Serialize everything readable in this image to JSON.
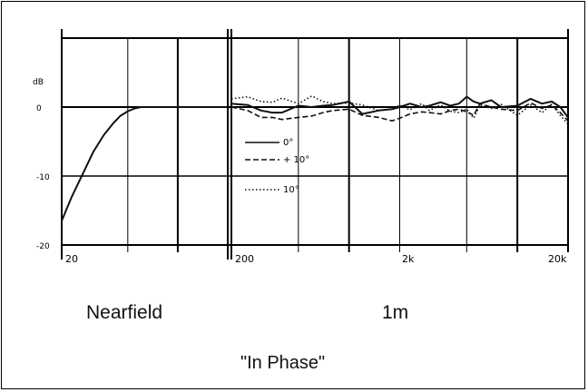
{
  "chart_data": {
    "type": "line",
    "ylabel": "dB",
    "ylim": [
      -20,
      8
    ],
    "y_ticks": [
      "0",
      "-10",
      "-20"
    ],
    "panels": [
      {
        "name": "Nearfield",
        "x_scale": "log",
        "xlim": [
          20,
          200
        ],
        "x_tick_labels": [
          "20"
        ],
        "series": [
          {
            "name": "",
            "style": "solid",
            "x": [
              20,
              23,
              27,
              31,
              36,
              41,
              45,
              50,
              55,
              60,
              70,
              80,
              100,
              130,
              200
            ],
            "y": [
              -16.5,
              -13,
              -9.5,
              -6.5,
              -4,
              -2.3,
              -1.3,
              -0.6,
              -0.2,
              0,
              0,
              0,
              0,
              0,
              0
            ]
          }
        ]
      },
      {
        "name": "1m",
        "x_scale": "log",
        "xlim": [
          200,
          20000
        ],
        "x_tick_labels": [
          "200",
          "2k",
          "20k"
        ],
        "series": [
          {
            "name": "0°",
            "style": "solid",
            "x": [
              200,
              250,
              300,
              350,
              400,
              500,
              600,
              700,
              800,
              1000,
              1200,
              1500,
              1800,
              2000,
              2300,
              2700,
              3000,
              3500,
              4000,
              4500,
              5000,
              5500,
              6000,
              7000,
              8000,
              10000,
              12000,
              14000,
              16000,
              18000,
              20000
            ],
            "y": [
              0.5,
              0.3,
              -0.5,
              -0.8,
              -0.8,
              0.2,
              0,
              0.2,
              0.3,
              0.8,
              -1.0,
              -0.5,
              -0.3,
              0,
              0.5,
              0,
              0.2,
              0.7,
              0.2,
              0.5,
              1.5,
              0.8,
              0.5,
              1.0,
              0,
              0.2,
              1.2,
              0.5,
              0.8,
              0,
              -1.5
            ],
            "legend": "0°"
          },
          {
            "name": "+10°",
            "style": "dashed",
            "x": [
              200,
              250,
              300,
              350,
              400,
              500,
              600,
              700,
              800,
              1000,
              1200,
              1500,
              1800,
              2000,
              2300,
              2700,
              3000,
              3500,
              4000,
              4500,
              5000,
              5500,
              6000,
              7000,
              8000,
              10000,
              12000,
              14000,
              16000,
              18000,
              20000
            ],
            "y": [
              0,
              -0.5,
              -1.5,
              -1.5,
              -1.8,
              -1.5,
              -1.3,
              -0.8,
              -0.5,
              -0.3,
              -1.2,
              -1.5,
              -2.0,
              -1.6,
              -1.0,
              -0.7,
              -0.8,
              -1.0,
              -0.5,
              -0.3,
              -0.7,
              -1.2,
              0.5,
              0,
              -0.3,
              -0.5,
              0.6,
              -0.2,
              0.3,
              -0.8,
              -2.0
            ]
          },
          {
            "name": "10°",
            "style": "dotted",
            "x": [
              200,
              250,
              300,
              350,
              400,
              500,
              600,
              700,
              800,
              1000,
              1200,
              1500,
              1800,
              2000,
              2300,
              2700,
              3000,
              3500,
              4000,
              4500,
              5000,
              5500,
              6000,
              7000,
              8000,
              10000,
              12000,
              14000,
              16000,
              18000,
              20000
            ],
            "y": [
              1.2,
              1.5,
              0.8,
              0.7,
              1.3,
              0.5,
              1.6,
              0.8,
              0.5,
              0.6,
              0.3,
              -0.5,
              -0.3,
              0.3,
              -0.4,
              0.5,
              -0.5,
              0.3,
              -0.6,
              -0.8,
              -0.3,
              -1.6,
              0.3,
              -0.2,
              0.4,
              -1.2,
              0.3,
              -0.8,
              0.4,
              -1.2,
              -2.5
            ]
          }
        ]
      }
    ],
    "legend": [
      {
        "label": "0°",
        "style": "solid"
      },
      {
        "label": "+ 10°",
        "style": "dashed"
      },
      {
        "label": "10°",
        "style": "dotted"
      }
    ],
    "grid": true,
    "legend_placement": "inside, lower-left of 1m panel"
  },
  "captions": {
    "nearfield": "Nearfield",
    "distance": "1m",
    "phase": "\"In Phase\""
  }
}
